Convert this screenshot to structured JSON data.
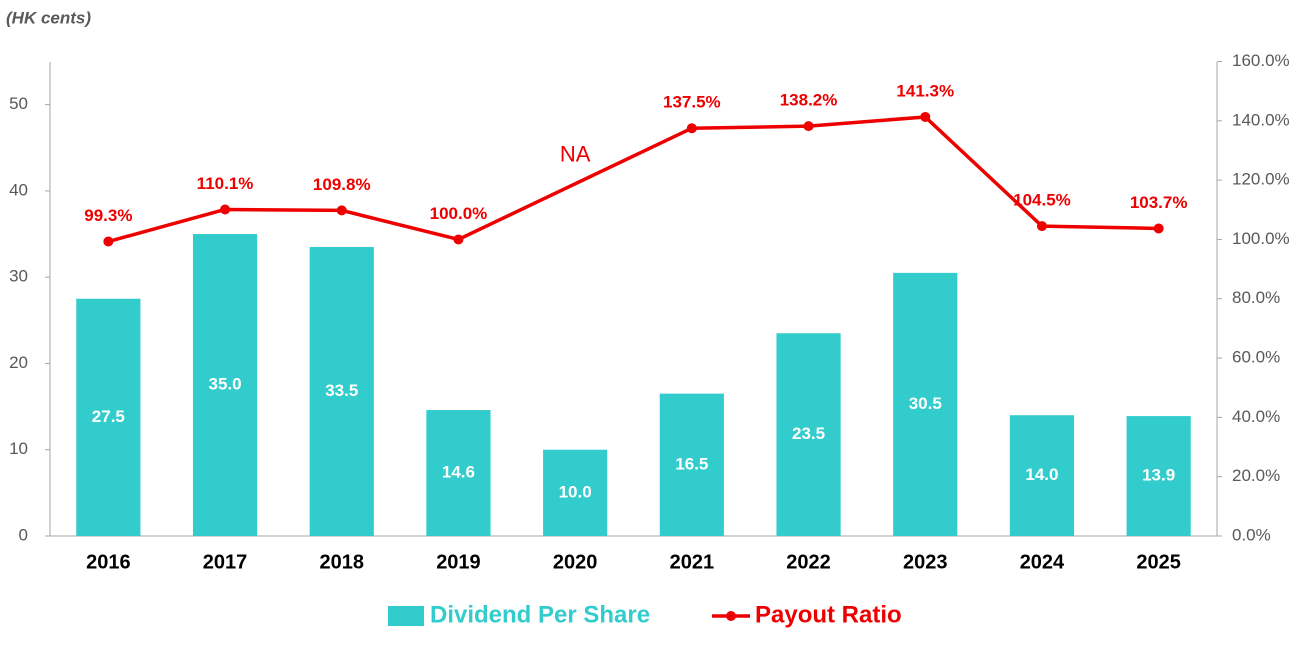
{
  "chart_data": {
    "type": "bar-line",
    "y_label": "(HK cents)",
    "categories": [
      "2016",
      "2017",
      "2018",
      "2019",
      "2020",
      "2021",
      "2022",
      "2023",
      "2024",
      "2025"
    ],
    "series": [
      {
        "name": "Dividend Per Share",
        "type": "bar",
        "color": "#33cccc",
        "values": [
          27.5,
          35.0,
          33.5,
          14.6,
          10.0,
          16.5,
          23.5,
          30.5,
          14.0,
          13.9
        ],
        "value_labels": [
          "27.5",
          "35.0",
          "33.5",
          "14.6",
          "10.0",
          "16.5",
          "23.5",
          "30.5",
          "14.0",
          "13.9"
        ]
      },
      {
        "name": "Payout Ratio",
        "type": "line",
        "axis": "y2",
        "color": "#ee0000",
        "values": [
          99.3,
          110.1,
          109.8,
          100.0,
          null,
          137.5,
          138.2,
          141.3,
          104.5,
          103.7
        ],
        "value_labels": [
          "99.3%",
          "110.1%",
          "109.8%",
          "100.0%",
          "NA",
          "137.5%",
          "138.2%",
          "141.3%",
          "104.5%",
          "103.7%"
        ]
      }
    ],
    "ylim": [
      0,
      55
    ],
    "yticks": [
      0,
      10,
      20,
      30,
      40,
      50
    ],
    "y2lim": [
      0,
      160
    ],
    "y2ticks": [
      {
        "value": 0,
        "label": "0.0%"
      },
      {
        "value": 20,
        "label": "20.0%"
      },
      {
        "value": 40,
        "label": "40.0%"
      },
      {
        "value": 60,
        "label": "60.0%"
      },
      {
        "value": 80,
        "label": "80.0%"
      },
      {
        "value": 100,
        "label": "100.0%"
      },
      {
        "value": 120,
        "label": "120.0%"
      },
      {
        "value": 140,
        "label": "140.0%"
      },
      {
        "value": 160,
        "label": "160.0%"
      }
    ],
    "grid": false,
    "legend": "bottom"
  }
}
